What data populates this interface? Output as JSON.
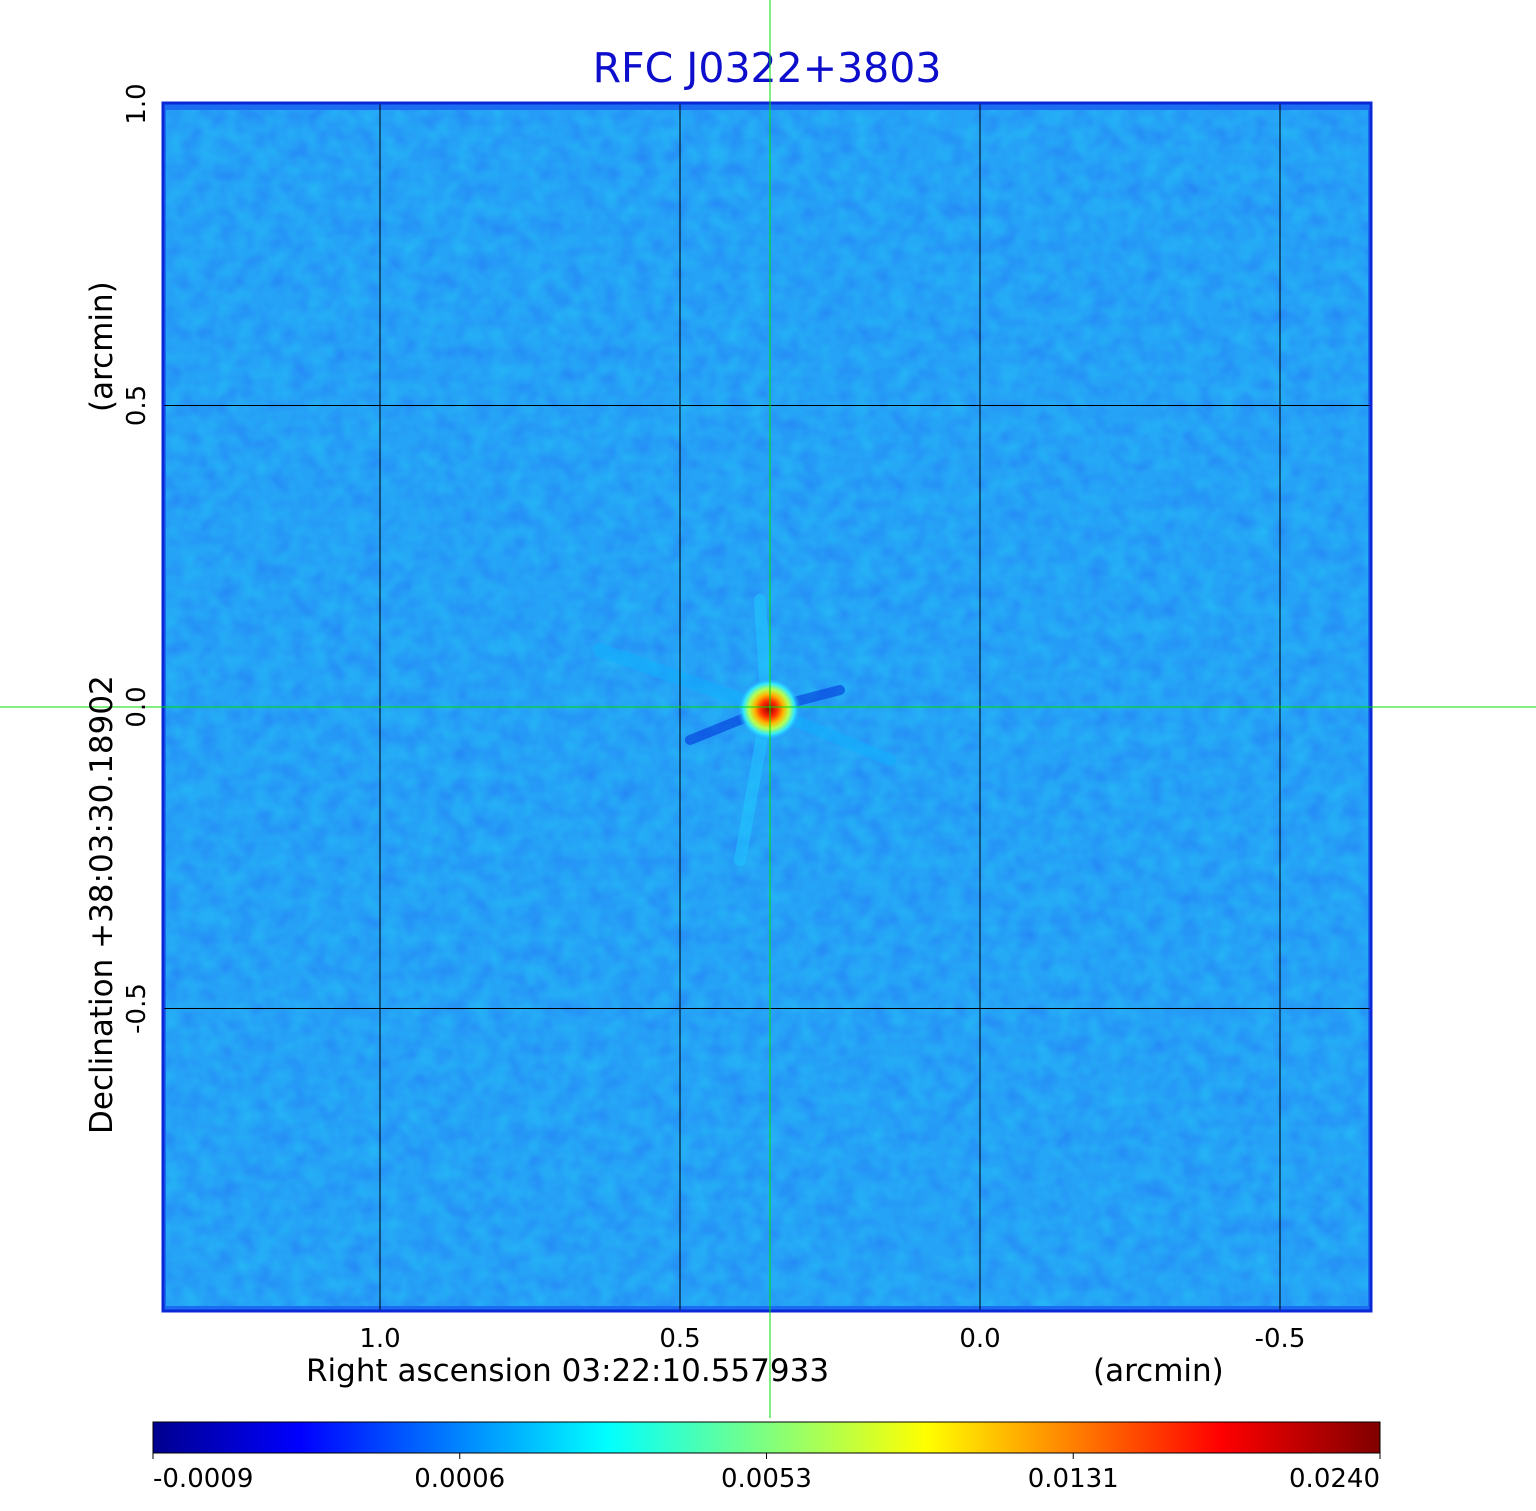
{
  "chart_data": {
    "type": "heatmap",
    "title": "RFC J0322+3803",
    "xlabel": "Right ascension  03:22:10.557933",
    "xunit": "(arcmin)",
    "ylabel": "Declination  +38:03:30.18902",
    "yunit": "(arcmin)",
    "xlim": [
      1.36,
      -0.65
    ],
    "ylim": [
      -1.0,
      1.0
    ],
    "x_ticks": [
      1.0,
      0.5,
      0.0,
      -0.5
    ],
    "x_tick_labels": [
      "1.0",
      "0.5",
      "0.0",
      "-0.5"
    ],
    "y_ticks": [
      1.0,
      0.5,
      0.0,
      -0.5
    ],
    "y_tick_labels": [
      "1.0",
      "0.5",
      "0.0",
      "-0.5"
    ],
    "grid": true,
    "crosshair": {
      "x": 0.35,
      "y": 0.0,
      "color": "#00dd00"
    },
    "peak": {
      "x": 0.35,
      "y": 0.0,
      "value": 0.024
    },
    "colorbar": {
      "colormap": "jet",
      "ticks": [
        -0.0009,
        0.0006,
        0.0053,
        0.0131,
        0.024
      ],
      "tick_labels": [
        "-0.0009",
        "0.0006",
        "0.0053",
        "0.0131",
        "0.0240"
      ]
    },
    "colors": {
      "title": "#0d0dcc",
      "frame": "#0a28d6",
      "grid": "#000000",
      "background_field": "#1a6cf0"
    }
  }
}
